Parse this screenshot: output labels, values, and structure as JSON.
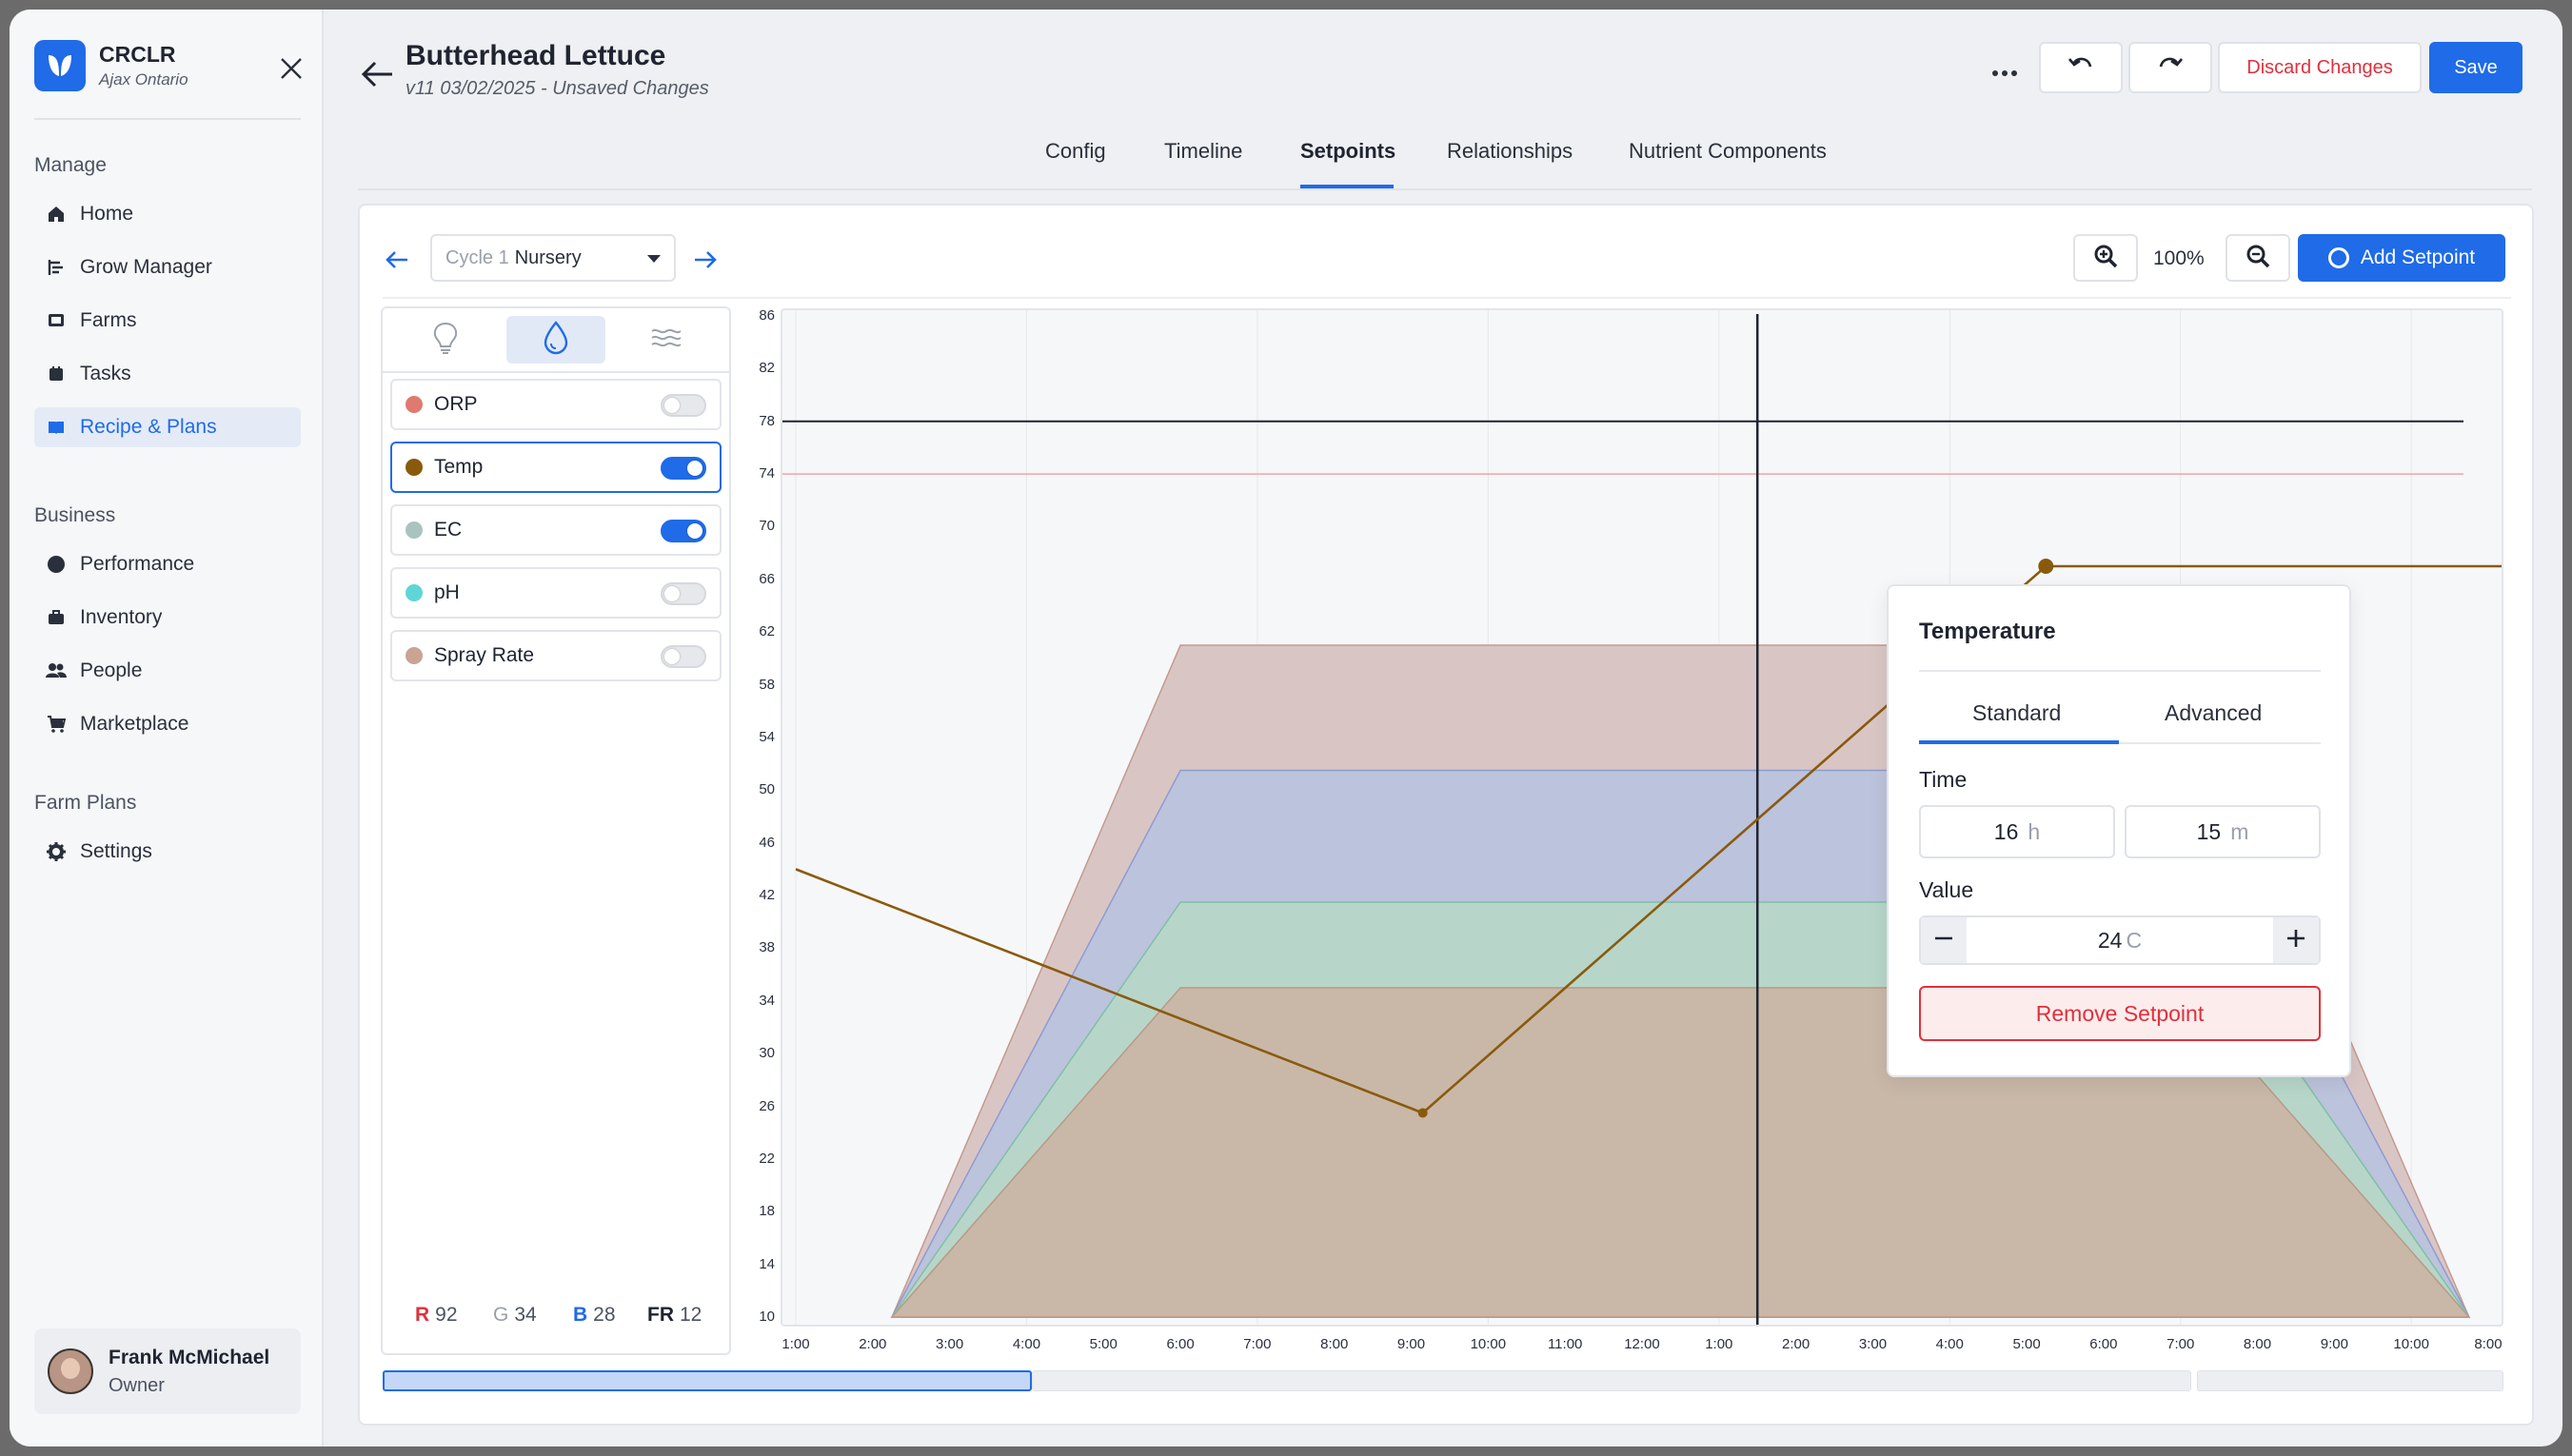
{
  "app": {
    "name": "CRCLR",
    "location": "Ajax Ontario"
  },
  "sidebar": {
    "sections": [
      {
        "title": "Manage"
      },
      {
        "title": "Business"
      },
      {
        "title": "Farm Plans"
      }
    ],
    "items": [
      {
        "label": "Home",
        "icon": "home-icon"
      },
      {
        "label": "Grow Manager",
        "icon": "grow-manager-icon"
      },
      {
        "label": "Farms",
        "icon": "farms-icon"
      },
      {
        "label": "Tasks",
        "icon": "tasks-icon"
      },
      {
        "label": "Recipe & Plans",
        "icon": "recipe-icon",
        "active": true
      },
      {
        "label": "Performance",
        "icon": "performance-icon"
      },
      {
        "label": "Inventory",
        "icon": "inventory-icon"
      },
      {
        "label": "People",
        "icon": "people-icon"
      },
      {
        "label": "Marketplace",
        "icon": "cart-icon"
      },
      {
        "label": "Settings",
        "icon": "gear-icon"
      }
    ]
  },
  "user": {
    "name": "Frank McMichael",
    "role": "Owner"
  },
  "header": {
    "title": "Butterhead Lettuce",
    "subtitle": "v11 03/02/2025 - Unsaved Changes",
    "discard_label": "Discard Changes",
    "save_label": "Save"
  },
  "tabs": [
    "Config",
    "Timeline",
    "Setpoints",
    "Relationships",
    "Nutrient Components"
  ],
  "active_tab": "Setpoints",
  "toolbar": {
    "cycle_prefix": "Cycle 1",
    "cycle_value": "Nursery",
    "zoom": "100%",
    "add_label": "Add Setpoint"
  },
  "parameters": [
    {
      "label": "ORP",
      "color": "#e07a6e",
      "enabled": false
    },
    {
      "label": "Temp",
      "color": "#8a5a0c",
      "enabled": true,
      "selected": true
    },
    {
      "label": "EC",
      "color": "#a9c4bf",
      "enabled": true
    },
    {
      "label": "pH",
      "color": "#5fd6d6",
      "enabled": false
    },
    {
      "label": "Spray Rate",
      "color": "#c9a394",
      "enabled": false
    }
  ],
  "light_values": {
    "r_label": "R",
    "r": "92",
    "g_label": "G",
    "g": "34",
    "b_label": "B",
    "b": "28",
    "fr_label": "FR",
    "fr": "12"
  },
  "popup": {
    "title": "Temperature",
    "tab_standard": "Standard",
    "tab_advanced": "Advanced",
    "time_label": "Time",
    "hours": "16",
    "hours_unit": "h",
    "minutes": "15",
    "minutes_unit": "m",
    "value_label": "Value",
    "value": "24",
    "value_unit": "C",
    "remove_label": "Remove Setpoint"
  },
  "chart_data": {
    "type": "area",
    "y_ticks": [
      "86",
      "82",
      "78",
      "74",
      "70",
      "66",
      "62",
      "58",
      "54",
      "50",
      "46",
      "42",
      "38",
      "34",
      "30",
      "26",
      "22",
      "18",
      "14",
      "10"
    ],
    "x_ticks": [
      "1:00",
      "2:00",
      "3:00",
      "4:00",
      "5:00",
      "6:00",
      "7:00",
      "8:00",
      "9:00",
      "10:00",
      "11:00",
      "12:00",
      "1:00",
      "2:00",
      "3:00",
      "4:00",
      "5:00",
      "6:00",
      "7:00",
      "8:00",
      "9:00",
      "10:00",
      "8:00"
    ],
    "ylim": [
      10,
      86
    ],
    "reference_lines": {
      "upper": 78,
      "limit": 74
    },
    "light_bands": [
      {
        "color": "#d9c6c4",
        "stroke": "#c49a8f",
        "plateau": 61
      },
      {
        "color": "#bcc3dc",
        "stroke": "#8f9bd0",
        "plateau": 51.5
      },
      {
        "color": "#b7d6c9",
        "stroke": "#7fc0a6",
        "plateau": 41.5
      },
      {
        "color": "#c9b8a8",
        "stroke": "#b99a86",
        "plateau": 35
      }
    ],
    "light_ramp": {
      "start_x": "2:15",
      "plateau_start_x": "6:00",
      "plateau_end_x": "7:00",
      "end_x": "10:45"
    },
    "series": [
      {
        "color": "#8a5a0c",
        "points": [
          [
            0,
            44
          ],
          [
            8.15,
            25.5
          ],
          [
            16.25,
            67
          ],
          [
            22.5,
            67
          ]
        ]
      }
    ],
    "cursor_x": "1:30"
  }
}
